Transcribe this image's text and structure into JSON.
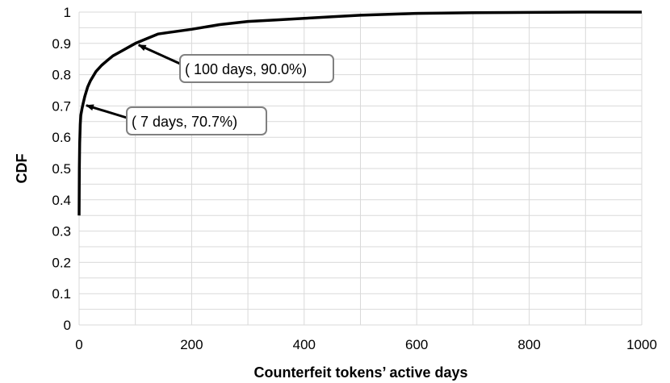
{
  "chart_data": {
    "type": "line",
    "xlabel": "Counterfeit tokens’ active days",
    "ylabel": "CDF",
    "xlim": [
      0,
      1000
    ],
    "ylim": [
      0,
      1
    ],
    "x_ticks": [
      "0",
      "200",
      "400",
      "600",
      "800",
      "1000"
    ],
    "y_ticks": [
      "0",
      "0.1",
      "0.2",
      "0.3",
      "0.4",
      "0.5",
      "0.6",
      "0.7",
      "0.8",
      "0.9",
      "1"
    ],
    "grid": true,
    "series": [
      {
        "x": [
          0,
          0.5,
          1,
          2,
          3,
          5,
          7,
          10,
          15,
          20,
          30,
          40,
          50,
          60,
          75,
          90,
          100,
          120,
          140,
          160,
          200,
          250,
          300,
          350,
          400,
          450,
          500,
          550,
          600,
          700,
          800,
          900,
          1000
        ],
        "y": [
          0.35,
          0.5,
          0.58,
          0.64,
          0.67,
          0.69,
          0.707,
          0.73,
          0.76,
          0.78,
          0.81,
          0.83,
          0.845,
          0.86,
          0.875,
          0.89,
          0.9,
          0.915,
          0.93,
          0.935,
          0.945,
          0.96,
          0.97,
          0.975,
          0.98,
          0.985,
          0.99,
          0.993,
          0.996,
          0.998,
          0.999,
          1.0,
          1.0
        ]
      }
    ],
    "annotations": [
      {
        "text": "( 100 days, 90.0%)",
        "x": 100,
        "y": 0.9
      },
      {
        "text": "( 7 days, 70.7%)",
        "x": 7,
        "y": 0.707
      }
    ]
  },
  "colors": {
    "line": "#000000",
    "grid": "#d9d9d9",
    "box": "#808080"
  }
}
